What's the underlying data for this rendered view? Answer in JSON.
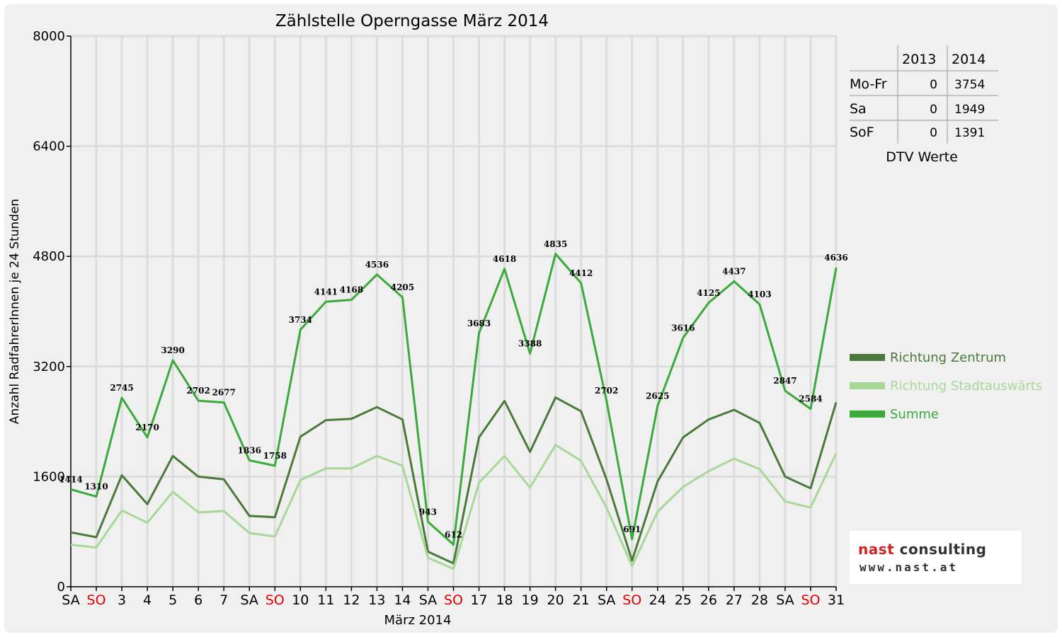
{
  "chart_data": {
    "type": "line",
    "title": "Zählstelle Operngasse März 2014",
    "xlabel": "März 2014",
    "ylabel": "Anzahl RadfahrerInnen je 24 Stunden",
    "ylim": [
      0,
      8000
    ],
    "yticks": [
      "0",
      "1600",
      "3200",
      "4800",
      "6400",
      "8000"
    ],
    "categories": [
      "SA",
      "SO",
      "3",
      "4",
      "5",
      "6",
      "7",
      "SA",
      "SO",
      "10",
      "11",
      "12",
      "13",
      "14",
      "SA",
      "SO",
      "17",
      "18",
      "19",
      "20",
      "21",
      "SA",
      "SO",
      "24",
      "25",
      "26",
      "27",
      "28",
      "SA",
      "SO",
      "31"
    ],
    "weekend_categories": [
      "SO"
    ],
    "grid": true,
    "legend_position": "right",
    "series": [
      {
        "name": "Richtung Zentrum",
        "color": "#4a7a3a",
        "values": [
          790,
          720,
          1620,
          1200,
          1900,
          1600,
          1560,
          1030,
          1010,
          2180,
          2420,
          2440,
          2610,
          2430,
          510,
          340,
          2170,
          2700,
          1960,
          2750,
          2550,
          1560,
          380,
          1530,
          2170,
          2430,
          2570,
          2380,
          1600,
          1430,
          2680
        ]
      },
      {
        "name": "Richtung Stadtauswärts",
        "color": "#a8d898",
        "values": [
          610,
          570,
          1110,
          930,
          1380,
          1080,
          1100,
          780,
          730,
          1550,
          1720,
          1720,
          1900,
          1760,
          420,
          260,
          1510,
          1900,
          1440,
          2060,
          1830,
          1150,
          300,
          1090,
          1450,
          1680,
          1860,
          1710,
          1240,
          1150,
          1940
        ]
      },
      {
        "name": "Summe",
        "color": "#3aaa3a",
        "labels": true,
        "values": [
          1414,
          1310,
          2745,
          2170,
          3290,
          2702,
          2677,
          1836,
          1758,
          3734,
          4141,
          4168,
          4536,
          4205,
          943,
          612,
          3683,
          4618,
          3388,
          4835,
          4412,
          2702,
          691,
          2625,
          3616,
          4125,
          4437,
          4103,
          2847,
          2584,
          4636
        ]
      }
    ]
  },
  "dtv_table": {
    "headers": [
      "",
      "2013",
      "2014"
    ],
    "rows": [
      {
        "label": "Mo-Fr",
        "v2013": "0",
        "v2014": "3754"
      },
      {
        "label": "Sa",
        "v2013": "0",
        "v2014": "1949"
      },
      {
        "label": "SoF",
        "v2013": "0",
        "v2014": "1391"
      }
    ],
    "caption": "DTV Werte"
  },
  "logo": {
    "word1": "nast",
    "word2": " consulting",
    "url": "www.nast.at",
    "word1_color": "#d42020",
    "word2_color": "#333333"
  }
}
